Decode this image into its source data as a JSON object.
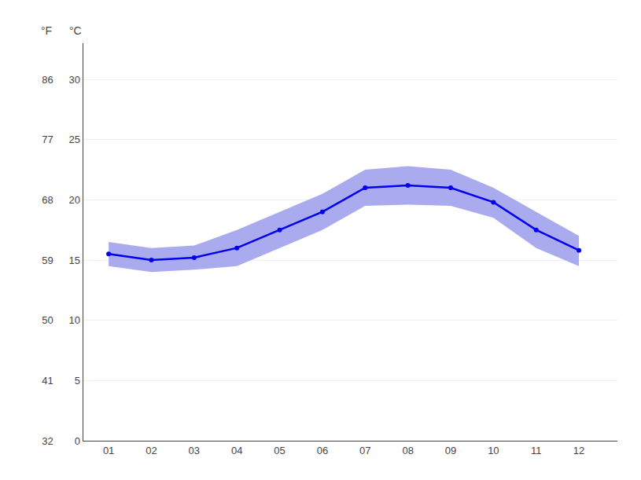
{
  "chart_data": {
    "type": "line",
    "x": [
      1,
      2,
      3,
      4,
      5,
      6,
      7,
      8,
      9,
      10,
      11,
      12
    ],
    "xlim": [
      0.4,
      12.9
    ],
    "xticks": [
      {
        "value": 1,
        "label": "01"
      },
      {
        "value": 2,
        "label": "02"
      },
      {
        "value": 3,
        "label": "03"
      },
      {
        "value": 4,
        "label": "04"
      },
      {
        "value": 5,
        "label": "05"
      },
      {
        "value": 6,
        "label": "06"
      },
      {
        "value": 7,
        "label": "07"
      },
      {
        "value": 8,
        "label": "08"
      },
      {
        "value": 9,
        "label": "09"
      },
      {
        "value": 10,
        "label": "10"
      },
      {
        "value": 11,
        "label": "11"
      },
      {
        "value": 12,
        "label": "12"
      }
    ],
    "ylabel": "°C",
    "ylim": [
      0,
      33
    ],
    "yticks": [
      0,
      5,
      10,
      15,
      20,
      25,
      30
    ],
    "y2label": "°F",
    "y2lim": [
      32,
      91.4
    ],
    "y2ticks": [
      32,
      41,
      50,
      59,
      68,
      77,
      86
    ],
    "grid": true,
    "series": [
      {
        "type": "band",
        "low": [
          14.5,
          14.0,
          14.2,
          14.5,
          16.0,
          17.5,
          19.5,
          19.6,
          19.5,
          18.5,
          16.0,
          14.5
        ],
        "high": [
          16.5,
          16.0,
          16.2,
          17.5,
          19.0,
          20.5,
          22.5,
          22.8,
          22.5,
          21.0,
          19.0,
          17.0
        ],
        "color": "#aaaaee"
      },
      {
        "type": "line",
        "values": [
          15.5,
          15.0,
          15.2,
          16.0,
          17.5,
          19.0,
          21.0,
          21.2,
          21.0,
          19.8,
          17.5,
          15.8
        ],
        "color": "#0000ee",
        "marker": "circle"
      }
    ]
  }
}
